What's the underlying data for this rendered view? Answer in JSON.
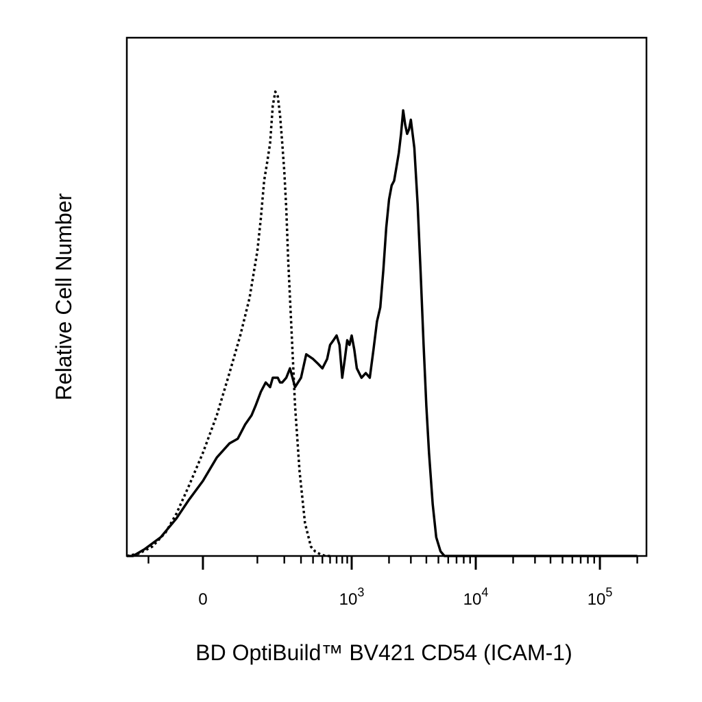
{
  "chart_data": {
    "type": "line",
    "title": "",
    "xlabel": "BD OptiBuild™ BV421 CD54 (ICAM-1)",
    "ylabel": "Relative Cell Number",
    "x_scale": "biexponential",
    "xlim": [
      -300,
      200000
    ],
    "ylim": [
      0,
      100
    ],
    "grid": false,
    "legend": "none",
    "x_ticks": [
      {
        "value": 0,
        "base": "0",
        "exp": ""
      },
      {
        "value": 1000,
        "base": "10",
        "exp": "3"
      },
      {
        "value": 10000,
        "base": "10",
        "exp": "4"
      },
      {
        "value": 100000,
        "base": "10",
        "exp": "5"
      }
    ],
    "series": [
      {
        "style": "dotted",
        "color": "#000000",
        "x": [
          -300,
          -180,
          -130,
          -90,
          -60,
          -40,
          -20,
          0,
          20,
          40,
          60,
          80,
          100,
          110,
          120,
          130,
          140,
          150,
          160,
          170,
          180,
          190,
          200,
          210,
          220,
          240,
          260,
          290,
          330,
          380,
          420,
          480,
          540,
          600
        ],
        "y": [
          0,
          0,
          0.5,
          2,
          5,
          9,
          15,
          22,
          30,
          39,
          47,
          55,
          65,
          72,
          80,
          84,
          88,
          96,
          99,
          98,
          94,
          88,
          82,
          74,
          63,
          47,
          32,
          18,
          7,
          2,
          1,
          0.3,
          0,
          0
        ]
      },
      {
        "style": "solid",
        "color": "#000000",
        "x": [
          -300,
          -150,
          -110,
          -70,
          -40,
          -20,
          0,
          20,
          40,
          55,
          70,
          85,
          95,
          110,
          125,
          140,
          150,
          160,
          170,
          180,
          190,
          210,
          230,
          260,
          300,
          340,
          400,
          450,
          500,
          560,
          600,
          650,
          700,
          750,
          800,
          850,
          900,
          950,
          1000,
          1050,
          1100,
          1200,
          1300,
          1400,
          1500,
          1600,
          1700,
          1800,
          1900,
          2000,
          2100,
          2200,
          2300,
          2400,
          2500,
          2600,
          2700,
          2800,
          2900,
          3000,
          3200,
          3400,
          3600,
          3800,
          4000,
          4200,
          4500,
          4800,
          5200,
          5600,
          6000,
          6500,
          7000,
          7500,
          8000,
          9000,
          10000,
          30000,
          100000,
          200000
        ],
        "y": [
          0,
          0,
          1.5,
          4,
          8,
          12,
          16,
          21,
          24,
          25,
          28,
          30,
          32,
          35,
          37,
          36,
          38,
          38,
          38,
          37,
          37,
          38,
          40,
          36,
          38,
          43,
          42,
          41,
          40,
          42,
          45,
          46,
          47,
          45,
          38,
          42,
          46,
          45,
          47,
          44,
          40,
          38,
          39,
          38,
          44,
          50,
          53,
          61,
          70,
          76,
          79,
          80,
          83,
          86,
          90,
          95,
          92,
          90,
          91,
          93,
          87,
          75,
          60,
          45,
          32,
          22,
          11,
          4,
          1,
          0,
          0,
          0,
          0,
          0,
          0,
          0,
          0,
          0,
          0,
          0
        ]
      }
    ]
  }
}
